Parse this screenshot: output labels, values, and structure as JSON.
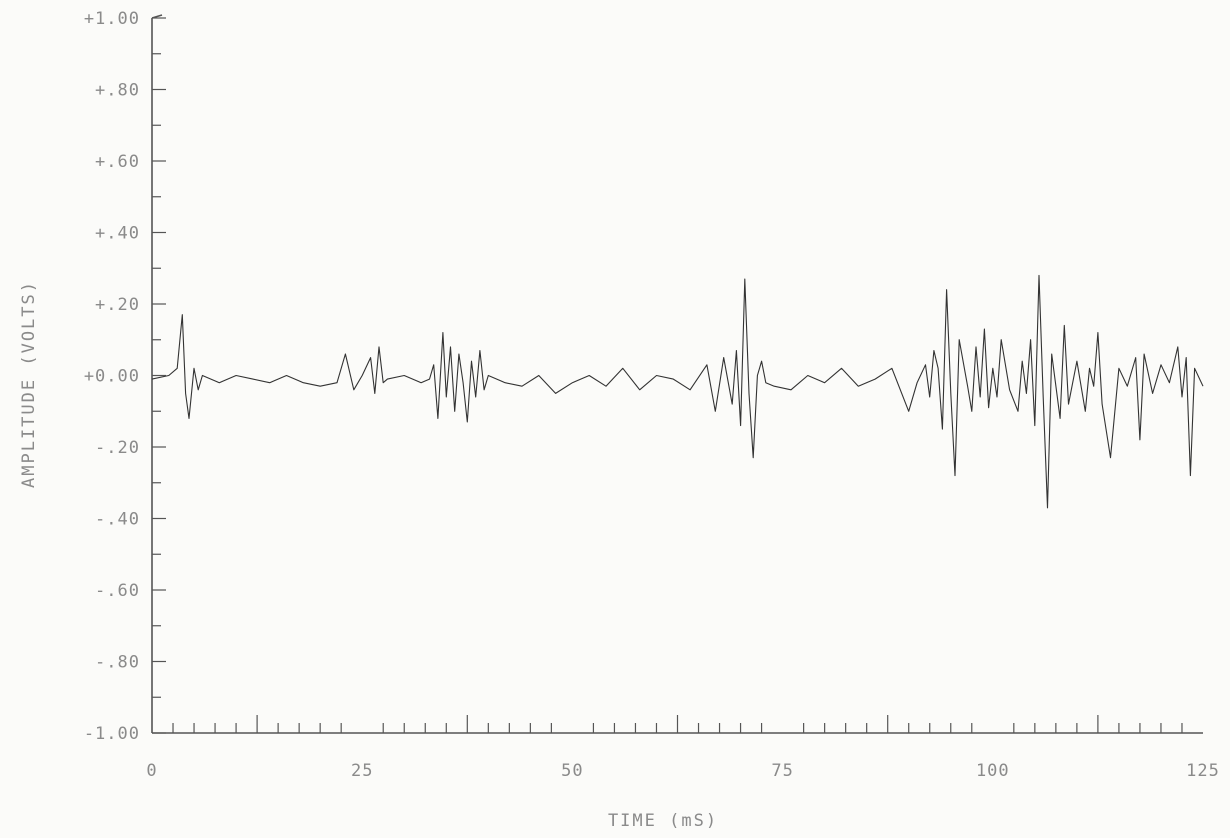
{
  "chart_data": {
    "type": "line",
    "title": "",
    "xlabel": "TIME (mS)",
    "ylabel": "AMPLITUDE (VOLTS)",
    "xlim": [
      0,
      125
    ],
    "ylim": [
      -1.0,
      1.0
    ],
    "grid": false,
    "x_ticks": [
      0,
      25,
      50,
      75,
      100,
      125
    ],
    "x_tick_labels": [
      "0",
      "25",
      "50",
      "75",
      "100",
      "125"
    ],
    "x_minor_step": 2.5,
    "y_ticks": [
      1.0,
      0.8,
      0.6,
      0.4,
      0.2,
      0.0,
      -0.2,
      -0.4,
      -0.6,
      -0.8,
      -1.0
    ],
    "y_tick_labels": [
      "+1.00",
      "+.80",
      "+.60",
      "+.40",
      "+.20",
      "+0.00",
      "-.20",
      "-.40",
      "-.60",
      "-.80",
      "-1.00"
    ],
    "series": [
      {
        "x": [
          0,
          2,
          3,
          3.6,
          4,
          4.4,
          5,
          5.5,
          6,
          8,
          10,
          12,
          14,
          16,
          18,
          20,
          22,
          23,
          24,
          25,
          26,
          26.5,
          27,
          27.5,
          28,
          30,
          32,
          33,
          33.5,
          34,
          34.6,
          35,
          35.5,
          36,
          36.5,
          37,
          37.5,
          38,
          38.5,
          39,
          39.5,
          40,
          42,
          44,
          46,
          48,
          50,
          52,
          54,
          56,
          58,
          60,
          62,
          64,
          66,
          67,
          68,
          69,
          69.5,
          70,
          70.5,
          71,
          71.5,
          72,
          72.5,
          73,
          74,
          76,
          78,
          80,
          82,
          84,
          86,
          88,
          90,
          91,
          92,
          92.5,
          93,
          93.5,
          94,
          94.5,
          95,
          95.5,
          96,
          97,
          97.5,
          98,
          98.5,
          99,
          99.5,
          100,
          100.5,
          101,
          102,
          103,
          103.5,
          104,
          104.5,
          105,
          105.5,
          106,
          106.5,
          107,
          108,
          108.5,
          109,
          110,
          111,
          111.5,
          112,
          112.5,
          113,
          114,
          115,
          116,
          117,
          117.5,
          118,
          119,
          120,
          121,
          122,
          122.5,
          123,
          123.5,
          124,
          125
        ],
        "y": [
          -0.01,
          0.0,
          0.02,
          0.17,
          -0.05,
          -0.12,
          0.02,
          -0.04,
          0.0,
          -0.02,
          0.0,
          -0.01,
          -0.02,
          0.0,
          -0.02,
          -0.03,
          -0.02,
          0.06,
          -0.04,
          0.0,
          0.05,
          -0.05,
          0.08,
          -0.02,
          -0.01,
          0.0,
          -0.02,
          -0.01,
          0.03,
          -0.12,
          0.12,
          -0.06,
          0.08,
          -0.1,
          0.06,
          -0.02,
          -0.13,
          0.04,
          -0.06,
          0.07,
          -0.04,
          0.0,
          -0.02,
          -0.03,
          0.0,
          -0.05,
          -0.02,
          0.0,
          -0.03,
          0.02,
          -0.04,
          0.0,
          -0.01,
          -0.04,
          0.03,
          -0.1,
          0.05,
          -0.08,
          0.07,
          -0.14,
          0.27,
          -0.05,
          -0.23,
          0.0,
          0.04,
          -0.02,
          -0.03,
          -0.04,
          0.0,
          -0.02,
          0.02,
          -0.03,
          -0.01,
          0.02,
          -0.1,
          -0.02,
          0.03,
          -0.06,
          0.07,
          0.02,
          -0.15,
          0.24,
          -0.05,
          -0.28,
          0.1,
          -0.03,
          -0.1,
          0.08,
          -0.06,
          0.13,
          -0.09,
          0.02,
          -0.06,
          0.1,
          -0.04,
          -0.1,
          0.04,
          -0.05,
          0.1,
          -0.14,
          0.28,
          -0.06,
          -0.37,
          0.06,
          -0.12,
          0.14,
          -0.08,
          0.04,
          -0.1,
          0.02,
          -0.03,
          0.12,
          -0.08,
          -0.23,
          0.02,
          -0.03,
          0.05,
          -0.18,
          0.06,
          -0.05,
          0.03,
          -0.02,
          0.08,
          -0.06,
          0.05,
          -0.28,
          0.02,
          -0.03
        ]
      }
    ]
  }
}
